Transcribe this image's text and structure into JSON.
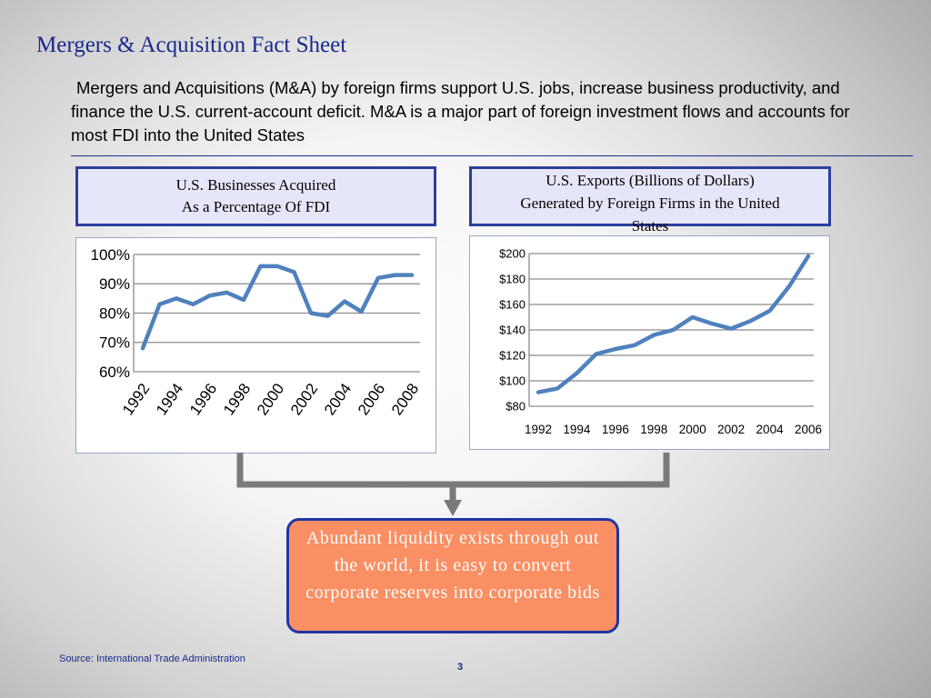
{
  "slide": {
    "title": "Mergers & Acquisition Fact Sheet",
    "intro": "Mergers and Acquisitions (M&A) by foreign firms support U.S. jobs, increase business productivity, and finance the U.S. current-account deficit. M&A is a major part of foreign investment flows and accounts for most FDI into the United States",
    "left_header": [
      "U.S. Businesses Acquired",
      "As a Percentage Of FDI"
    ],
    "right_header": [
      "U.S. Exports (Billions of Dollars)",
      "Generated by Foreign Firms in the United",
      "States"
    ],
    "conclusion": "Abundant liquidity exists through out the world, it is easy to convert corporate reserves into corporate bids",
    "source": "Source: International Trade Administration",
    "page_number": "3"
  },
  "colors": {
    "title": "#1a2a8c",
    "line": "#4f81bd",
    "header_fill": "#e6e6fa",
    "header_border": "#2b3f9c",
    "conclusion_fill": "#fa8f63",
    "connector": "#7a7a7a"
  },
  "chart_data": [
    {
      "type": "line",
      "x": [
        1992,
        1993,
        1994,
        1995,
        1996,
        1997,
        1998,
        1999,
        2000,
        2001,
        2002,
        2003,
        2004,
        2005,
        2006,
        2007,
        2008
      ],
      "xticks": [
        "1992",
        "1994",
        "1996",
        "1998",
        "2000",
        "2002",
        "2004",
        "2006",
        "2008"
      ],
      "yticks": [
        "60%",
        "70%",
        "80%",
        "90%",
        "100%"
      ],
      "series": [
        {
          "values": [
            68,
            83,
            85,
            83,
            86,
            87,
            84.5,
            96,
            96,
            94,
            80,
            79,
            84,
            80.5,
            92,
            93,
            93
          ]
        }
      ],
      "ylim": [
        60,
        100
      ],
      "grid": true
    },
    {
      "type": "line",
      "x": [
        1992,
        1993,
        1994,
        1995,
        1996,
        1997,
        1998,
        1999,
        2000,
        2001,
        2002,
        2003,
        2004,
        2005,
        2006
      ],
      "xticks": [
        "1992",
        "1994",
        "1996",
        "1998",
        "2000",
        "2002",
        "2004",
        "2006"
      ],
      "yticks": [
        "$80",
        "$100",
        "$120",
        "$140",
        "$160",
        "$180",
        "$200"
      ],
      "series": [
        {
          "values": [
            91,
            94,
            106,
            121,
            125,
            128,
            136,
            140,
            150,
            145,
            141,
            147,
            155,
            174,
            198
          ]
        }
      ],
      "ylim": [
        80,
        200
      ],
      "grid": true
    }
  ]
}
